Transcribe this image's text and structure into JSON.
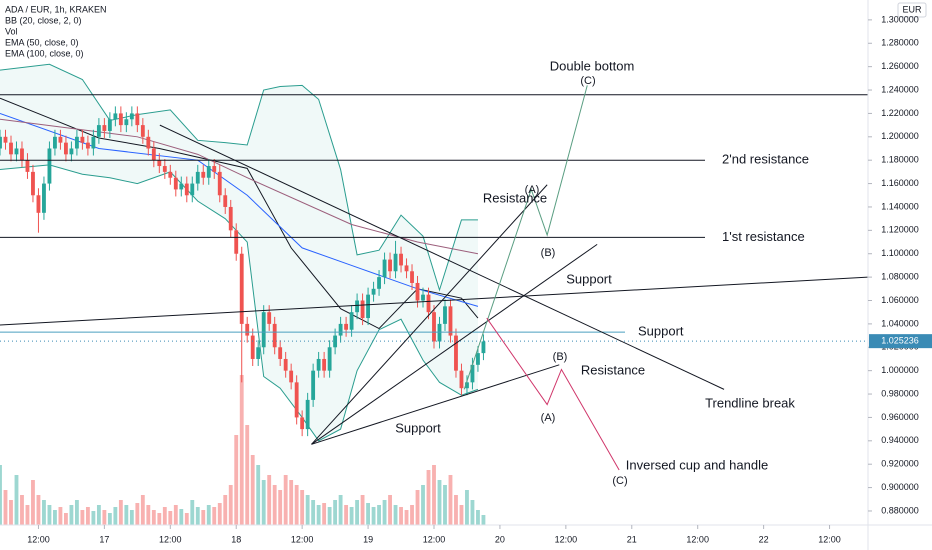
{
  "chart_data": {
    "type": "candlestick",
    "title": "ADA / EUR, 1h, KRAKEN",
    "indicators": [
      "BB (20, close, 2, 0)",
      "Vol",
      "EMA (50, close, 0)",
      "EMA (100, close, 0)"
    ],
    "currency": "EUR",
    "up_color": "#26a69a",
    "down_color": "#ef5350",
    "x": [
      2,
      3,
      4,
      5,
      6,
      7,
      8,
      9,
      10,
      11,
      12,
      13,
      14,
      15,
      16,
      17,
      18,
      19,
      20,
      21,
      22,
      23,
      24,
      25,
      26,
      27,
      28,
      29,
      30,
      31,
      32,
      33,
      34,
      35,
      36,
      37,
      38,
      39,
      40,
      41,
      42,
      43,
      44,
      45,
      46,
      47,
      48,
      49,
      50,
      51,
      52,
      53,
      54,
      55,
      56,
      57,
      58,
      59,
      60,
      61,
      62,
      63,
      64,
      65,
      66,
      67,
      68,
      69,
      70,
      71,
      72,
      73,
      74,
      75,
      76,
      77,
      78,
      79,
      80,
      81,
      82,
      83,
      84,
      85,
      86,
      87,
      88,
      89,
      90,
      91,
      92,
      93
    ],
    "open": [
      1.22,
      1.215,
      1.205,
      1.19,
      1.2,
      1.195,
      1.185,
      1.19,
      1.18,
      1.17,
      1.15,
      1.135,
      1.16,
      1.19,
      1.2,
      1.195,
      1.185,
      1.19,
      1.2,
      1.195,
      1.19,
      1.2,
      1.21,
      1.205,
      1.215,
      1.22,
      1.21,
      1.215,
      1.22,
      1.21,
      1.2,
      1.19,
      1.18,
      1.175,
      1.17,
      1.165,
      1.155,
      1.16,
      1.15,
      1.16,
      1.17,
      1.165,
      1.175,
      1.17,
      1.15,
      1.14,
      1.12,
      1.1,
      1.04,
      1.03,
      1.01,
      1.02,
      1.05,
      1.04,
      1.02,
      1.01,
      1.0,
      0.99,
      0.96,
      0.95,
      0.975,
      1.0,
      1.01,
      1.0,
      1.02,
      1.03,
      1.04,
      1.035,
      1.05,
      1.06,
      1.045,
      1.065,
      1.07,
      1.08,
      1.095,
      1.085,
      1.1,
      1.09,
      1.085,
      1.075,
      1.06,
      1.065,
      1.05,
      1.025,
      1.04,
      1.055,
      1.03,
      1.0,
      0.985,
      0.99,
      1.005,
      1.015
    ],
    "high": [
      1.226,
      1.221,
      1.211,
      1.206,
      1.206,
      1.201,
      1.196,
      1.196,
      1.186,
      1.176,
      1.156,
      1.166,
      1.196,
      1.206,
      1.206,
      1.201,
      1.196,
      1.206,
      1.206,
      1.201,
      1.206,
      1.216,
      1.216,
      1.221,
      1.226,
      1.226,
      1.221,
      1.226,
      1.226,
      1.216,
      1.206,
      1.196,
      1.186,
      1.181,
      1.176,
      1.171,
      1.166,
      1.166,
      1.166,
      1.176,
      1.176,
      1.181,
      1.181,
      1.176,
      1.156,
      1.146,
      1.126,
      1.106,
      1.046,
      1.036,
      1.026,
      1.056,
      1.056,
      1.046,
      1.026,
      1.016,
      1.006,
      0.996,
      0.966,
      0.981,
      1.006,
      1.016,
      1.016,
      1.026,
      1.036,
      1.046,
      1.046,
      1.056,
      1.066,
      1.066,
      1.071,
      1.076,
      1.086,
      1.101,
      1.101,
      1.111,
      1.106,
      1.096,
      1.091,
      1.081,
      1.071,
      1.071,
      1.056,
      1.046,
      1.061,
      1.061,
      1.036,
      1.006,
      0.996,
      1.011,
      1.021,
      1.031
    ],
    "low": [
      1.209,
      1.199,
      1.184,
      1.184,
      1.189,
      1.179,
      1.179,
      1.174,
      1.164,
      1.144,
      1.118,
      1.129,
      1.154,
      1.184,
      1.189,
      1.179,
      1.179,
      1.184,
      1.189,
      1.184,
      1.184,
      1.194,
      1.199,
      1.199,
      1.209,
      1.204,
      1.204,
      1.209,
      1.204,
      1.194,
      1.184,
      1.174,
      1.169,
      1.164,
      1.159,
      1.149,
      1.149,
      1.144,
      1.144,
      1.154,
      1.159,
      1.159,
      1.164,
      1.144,
      1.134,
      1.114,
      1.094,
      0.99,
      1.024,
      1.004,
      1.004,
      1.014,
      1.034,
      1.014,
      1.004,
      0.994,
      0.984,
      0.954,
      0.944,
      0.944,
      0.969,
      0.994,
      0.994,
      0.994,
      1.014,
      1.024,
      1.029,
      1.029,
      1.044,
      1.039,
      1.039,
      1.059,
      1.064,
      1.074,
      1.079,
      1.079,
      1.084,
      1.079,
      1.069,
      1.054,
      1.054,
      1.044,
      1.019,
      1.019,
      1.034,
      1.024,
      0.994,
      0.979,
      0.979,
      0.984,
      0.999,
      1.009
    ],
    "close": [
      1.215,
      1.205,
      1.19,
      1.2,
      1.195,
      1.185,
      1.19,
      1.18,
      1.17,
      1.15,
      1.135,
      1.16,
      1.19,
      1.2,
      1.195,
      1.185,
      1.19,
      1.2,
      1.195,
      1.19,
      1.2,
      1.21,
      1.205,
      1.215,
      1.22,
      1.21,
      1.215,
      1.22,
      1.21,
      1.2,
      1.19,
      1.18,
      1.175,
      1.17,
      1.165,
      1.155,
      1.16,
      1.15,
      1.16,
      1.17,
      1.165,
      1.175,
      1.17,
      1.15,
      1.14,
      1.12,
      1.1,
      1.04,
      1.03,
      1.01,
      1.02,
      1.05,
      1.04,
      1.02,
      1.01,
      1.0,
      0.99,
      0.96,
      0.95,
      0.975,
      1.0,
      1.01,
      1.0,
      1.02,
      1.03,
      1.04,
      1.035,
      1.05,
      1.06,
      1.045,
      1.065,
      1.07,
      1.08,
      1.095,
      1.085,
      1.1,
      1.09,
      1.085,
      1.075,
      1.06,
      1.065,
      1.05,
      1.025,
      1.04,
      1.055,
      1.03,
      1.0,
      0.985,
      0.99,
      1.005,
      1.015,
      1.025
    ],
    "volume": [
      15,
      20,
      40,
      60,
      35,
      25,
      50,
      30,
      20,
      45,
      30,
      25,
      20,
      15,
      18,
      12,
      20,
      25,
      15,
      18,
      14,
      20,
      15,
      12,
      18,
      25,
      20,
      15,
      22,
      30,
      20,
      15,
      12,
      18,
      14,
      20,
      16,
      12,
      25,
      18,
      15,
      20,
      18,
      22,
      30,
      40,
      90,
      150,
      100,
      70,
      60,
      45,
      50,
      40,
      35,
      50,
      45,
      40,
      35,
      30,
      25,
      20,
      22,
      18,
      25,
      30,
      20,
      18,
      25,
      30,
      22,
      18,
      20,
      25,
      30,
      20,
      18,
      15,
      20,
      35,
      40,
      55,
      60,
      45,
      40,
      50,
      30,
      20,
      35,
      25,
      15,
      10
    ],
    "bollinger": {
      "color": "#2a9d8f",
      "x": [
        5,
        14,
        20,
        25,
        30,
        36,
        41,
        46,
        50,
        53,
        56,
        60,
        63,
        67,
        70,
        74,
        78,
        82,
        85,
        89,
        92
      ],
      "upper": [
        1.257,
        1.262,
        1.249,
        1.214,
        1.219,
        1.223,
        1.197,
        1.195,
        1.193,
        1.24,
        1.243,
        1.244,
        1.232,
        1.172,
        1.099,
        1.103,
        1.133,
        1.115,
        1.069,
        1.129,
        1.129
      ],
      "lower": [
        1.172,
        1.176,
        1.168,
        1.165,
        1.16,
        1.17,
        1.145,
        1.13,
        1.11,
        0.995,
        0.985,
        0.96,
        0.94,
        0.95,
        1.0,
        1.035,
        1.044,
        1.009,
        0.99,
        0.979,
        0.984
      ]
    },
    "overlays": [
      {
        "color": "#131722",
        "x": [
          5,
          14,
          23,
          34,
          50,
          58,
          67,
          74,
          81,
          89,
          92
        ],
        "values": [
          1.233,
          1.216,
          1.199,
          1.19,
          1.173,
          1.105,
          1.053,
          1.036,
          1.07,
          1.062,
          1.045
        ]
      },
      {
        "color": "#2962ff",
        "x": [
          5,
          23,
          41,
          50,
          60,
          69,
          81,
          92
        ],
        "values": [
          1.22,
          1.19,
          1.18,
          1.15,
          1.105,
          1.09,
          1.07,
          1.055
        ]
      },
      {
        "color": "#9c5f7c",
        "x": [
          5,
          30,
          41,
          50,
          69,
          81,
          92
        ],
        "values": [
          1.215,
          1.2,
          1.185,
          1.165,
          1.125,
          1.11,
          1.1
        ]
      }
    ],
    "levels": [
      {
        "value": 1.236,
        "color": "#131722"
      },
      {
        "value": 1.18,
        "color": "#131722",
        "label": "2'nd resistance"
      },
      {
        "value": 1.114,
        "color": "#131722",
        "label": "1'st resistance"
      },
      {
        "value": 1.033,
        "color": "#4a9fbf",
        "label": "Support"
      }
    ],
    "lines": [
      {
        "color": "#131722",
        "x": [
          5,
          163
        ],
        "values": [
          1.039,
          1.08
        ]
      },
      {
        "color": "#131722",
        "x": [
          34.1,
          136.8
        ],
        "values": [
          1.21,
          0.984
        ]
      },
      {
        "color": "#131722",
        "x": [
          61.7,
          104.6
        ],
        "values": [
          0.937,
          1.159
        ]
      },
      {
        "color": "#131722",
        "x": [
          61.7,
          113.7
        ],
        "values": [
          0.937,
          1.108
        ]
      },
      {
        "color": "#131722",
        "x": [
          61.7,
          106.8
        ],
        "values": [
          0.937,
          1.005
        ]
      },
      {
        "color": "#5a9e82",
        "x": [
          89.5,
          101.7,
          104.6,
          111.9
        ],
        "values": [
          0.984,
          1.155,
          1.116,
          1.244
        ]
      },
      {
        "color": "#d0376b",
        "x": [
          93.6,
          104.6,
          107.2,
          117.7
        ],
        "values": [
          1.045,
          0.971,
          1.001,
          0.915
        ]
      }
    ],
    "annotations": [
      {
        "text": "Double bottom",
        "color": "#3d8a6e"
      },
      {
        "text": "(C)",
        "color": "#3d8a6e"
      },
      {
        "text": "(A)",
        "color": "#3d8a6e"
      },
      {
        "text": "(B)",
        "color": "#3d8a6e"
      },
      {
        "text": "Resistance",
        "color": "#131722"
      },
      {
        "text": "Support",
        "color": "#131722"
      },
      {
        "text": "Resistance",
        "color": "#131722"
      },
      {
        "text": "Support",
        "color": "#131722"
      },
      {
        "text": "(B)",
        "color": "#c2255c"
      },
      {
        "text": "(A)",
        "color": "#c2255c"
      },
      {
        "text": "Inversed cup and handle",
        "color": "#c2255c"
      },
      {
        "text": "(C)",
        "color": "#c2255c"
      },
      {
        "text": "Trendline break",
        "color": "#131722"
      }
    ],
    "last_price": 1.025236,
    "last_price_color": "#3a8bb5",
    "xlim": [
      5,
      163
    ],
    "xticks": [
      {
        "value": 12,
        "label": "12:00"
      },
      {
        "value": 24,
        "label": "17"
      },
      {
        "value": 36,
        "label": "12:00"
      },
      {
        "value": 48,
        "label": "18"
      },
      {
        "value": 60,
        "label": "12:00"
      },
      {
        "value": 72,
        "label": "19"
      },
      {
        "value": 84,
        "label": "12:00"
      },
      {
        "value": 96,
        "label": "20"
      },
      {
        "value": 108,
        "label": "12:00"
      },
      {
        "value": 120,
        "label": "21"
      },
      {
        "value": 132,
        "label": "12:00"
      },
      {
        "value": 144,
        "label": "22"
      },
      {
        "value": 156,
        "label": "12:00"
      }
    ],
    "ylim": [
      0.868,
      1.317
    ],
    "yticks": [
      {
        "value": 1.3,
        "label": "1.300000"
      },
      {
        "value": 1.28,
        "label": "1.280000"
      },
      {
        "value": 1.26,
        "label": "1.260000"
      },
      {
        "value": 1.24,
        "label": "1.240000"
      },
      {
        "value": 1.22,
        "label": "1.220000"
      },
      {
        "value": 1.2,
        "label": "1.200000"
      },
      {
        "value": 1.18,
        "label": "1.180000"
      },
      {
        "value": 1.16,
        "label": "1.160000"
      },
      {
        "value": 1.14,
        "label": "1.140000"
      },
      {
        "value": 1.12,
        "label": "1.120000"
      },
      {
        "value": 1.1,
        "label": "1.100000"
      },
      {
        "value": 1.08,
        "label": "1.080000"
      },
      {
        "value": 1.06,
        "label": "1.060000"
      },
      {
        "value": 1.04,
        "label": "1.040000"
      },
      {
        "value": 1.02,
        "label": "1.020000"
      },
      {
        "value": 1.0,
        "label": "1.000000"
      },
      {
        "value": 0.98,
        "label": "0.980000"
      },
      {
        "value": 0.96,
        "label": "0.960000"
      },
      {
        "value": 0.94,
        "label": "0.940000"
      },
      {
        "value": 0.92,
        "label": "0.920000"
      },
      {
        "value": 0.9,
        "label": "0.900000"
      },
      {
        "value": 0.88,
        "label": "0.880000"
      }
    ]
  }
}
